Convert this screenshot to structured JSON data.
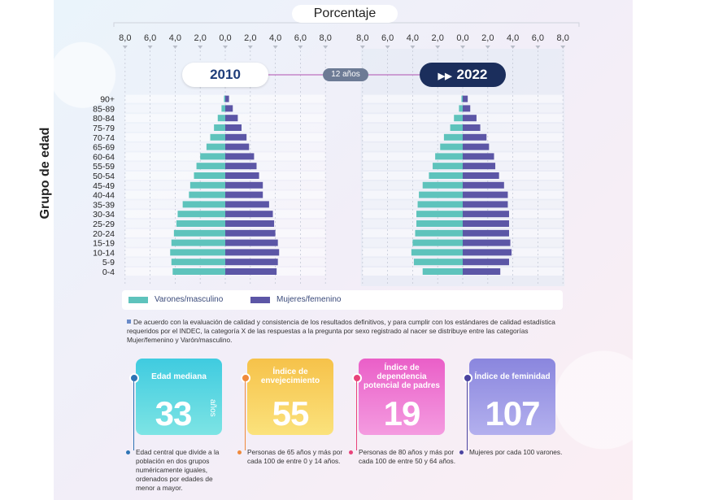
{
  "chart_data": {
    "type": "bar",
    "subtype": "population-pyramid",
    "xlabel": "Porcentaje",
    "ylabel": "Grupo de edad",
    "x_ticks": [
      "8,0",
      "6,0",
      "4,0",
      "2,0",
      "0,0",
      "2,0",
      "4,0",
      "6,0",
      "8,0"
    ],
    "xlim": [
      -8,
      8
    ],
    "categories": [
      "0-4",
      "5-9",
      "10-14",
      "15-19",
      "20-24",
      "25-29",
      "30-34",
      "35-39",
      "40-44",
      "45-49",
      "50-54",
      "55-59",
      "60-64",
      "65-69",
      "70-74",
      "75-79",
      "80-84",
      "85-89",
      "90+"
    ],
    "panels": [
      {
        "year": "2010",
        "series": [
          {
            "name": "Varones/masculino",
            "values": [
              4.2,
              4.3,
              4.4,
              4.3,
              4.1,
              3.9,
              3.8,
              3.4,
              2.9,
              2.8,
              2.5,
              2.3,
              2.0,
              1.5,
              1.2,
              0.9,
              0.6,
              0.3,
              0.1
            ]
          },
          {
            "name": "Mujeres/femenino",
            "values": [
              4.1,
              4.2,
              4.3,
              4.2,
              4.0,
              3.9,
              3.8,
              3.5,
              3.0,
              3.0,
              2.7,
              2.5,
              2.3,
              1.9,
              1.7,
              1.3,
              1.0,
              0.6,
              0.3
            ]
          }
        ]
      },
      {
        "year": "2022",
        "series": [
          {
            "name": "Varones/masculino",
            "values": [
              3.2,
              3.9,
              4.1,
              4.0,
              3.8,
              3.7,
              3.7,
              3.6,
              3.5,
              3.2,
              2.7,
              2.4,
              2.2,
              1.8,
              1.5,
              1.0,
              0.7,
              0.3,
              0.1
            ]
          },
          {
            "name": "Mujeres/femenino",
            "values": [
              3.0,
              3.7,
              3.9,
              3.8,
              3.7,
              3.7,
              3.7,
              3.6,
              3.6,
              3.3,
              2.9,
              2.6,
              2.5,
              2.1,
              1.9,
              1.4,
              1.1,
              0.6,
              0.4
            ]
          }
        ]
      }
    ],
    "colors": {
      "male": "#5ec3bc",
      "female": "#5c56a6"
    }
  },
  "header": {
    "axis_title": "Porcentaje",
    "year_left": "2010",
    "year_right": "2022",
    "interval": "12 años"
  },
  "yaxis": {
    "label": "Grupo de edad"
  },
  "legend": {
    "male": "Varones/masculino",
    "female": "Mujeres/femenino"
  },
  "note": "De acuerdo con la evaluación de calidad y consistencia de los resultados definitivos, y para cumplir con los estándares de calidad estadística requeridos por el INDEC, la categoría X de las respuestas a la pregunta por sexo registrado al nacer se distribuye entre las categorías Mujer/femenino y Varón/masculino.",
  "indicators": [
    {
      "title": "Edad mediana",
      "value": "33",
      "unit": "años",
      "desc": "Edad central que divide a la población en dos grupos numéricamente iguales, ordenados por edades de menor a mayor.",
      "color": "#4fd4de",
      "dot": "#2e74b5"
    },
    {
      "title": "Índice de envejecimiento",
      "value": "55",
      "unit": "",
      "desc": "Personas de 65 años y más por cada 100 de entre 0 y 14 años.",
      "color": "#f8cf56",
      "dot": "#f08a3c"
    },
    {
      "title": "Índice de dependencia potencial de padres",
      "value": "19",
      "unit": "",
      "desc": "Personas de 80 años y más por cada 100 de entre 50 y 64 años.",
      "color": "#ef6fd0",
      "dot": "#e8437a"
    },
    {
      "title": "Índice de feminidad",
      "value": "107",
      "unit": "",
      "desc": "Mujeres por cada 100 varones.",
      "color": "#8f8be0",
      "dot": "#4a43a0"
    }
  ]
}
